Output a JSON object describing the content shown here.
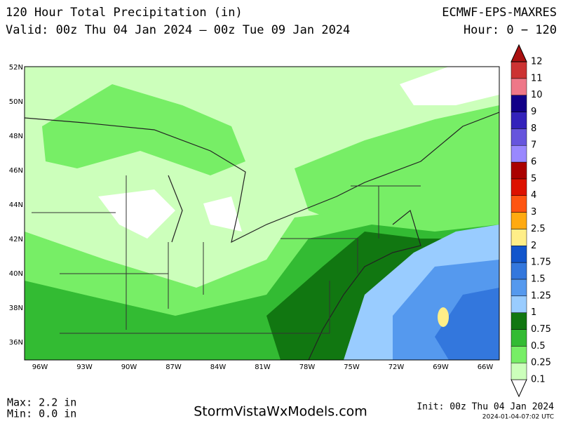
{
  "header": {
    "title": "120 Hour Total Precipitation (in)",
    "model": "ECMWF-EPS-MAXRES",
    "valid": "Valid: 00z Thu 04 Jan 2024 — 00z Tue 09 Jan 2024",
    "hour": "Hour: 0 − 120"
  },
  "map": {
    "lat_labels": [
      "52N",
      "50N",
      "48N",
      "46N",
      "44N",
      "42N",
      "40N",
      "38N",
      "36N"
    ],
    "lon_labels": [
      "96W",
      "93W",
      "90W",
      "87W",
      "84W",
      "81W",
      "78W",
      "75W",
      "72W",
      "69W",
      "66W"
    ]
  },
  "colorbar": {
    "labels": [
      "0.1",
      "0.25",
      "0.5",
      "0.75",
      "1",
      "1.25",
      "1.5",
      "1.75",
      "2",
      "2.5",
      "3",
      "4",
      "5",
      "6",
      "7",
      "8",
      "9",
      "10",
      "11",
      "12"
    ],
    "colors": [
      "#ccffbb",
      "#77ee66",
      "#33bb33",
      "#117711",
      "#99ccff",
      "#5599ee",
      "#3377dd",
      "#1155cc",
      "#ffee88",
      "#ffaa11",
      "#ff5511",
      "#dd1100",
      "#aa0000",
      "#9988ff",
      "#6655dd",
      "#3322bb",
      "#110088",
      "#ee7788",
      "#cc3333",
      "#aa1111"
    ]
  },
  "footer": {
    "max": "Max: 2.2 in",
    "min": "Min: 0.0 in",
    "site": "StormVistaWxModels.com",
    "init": "Init: 00z Thu 04 Jan 2024",
    "stamp": "2024-01-04-07:02 UTC"
  }
}
